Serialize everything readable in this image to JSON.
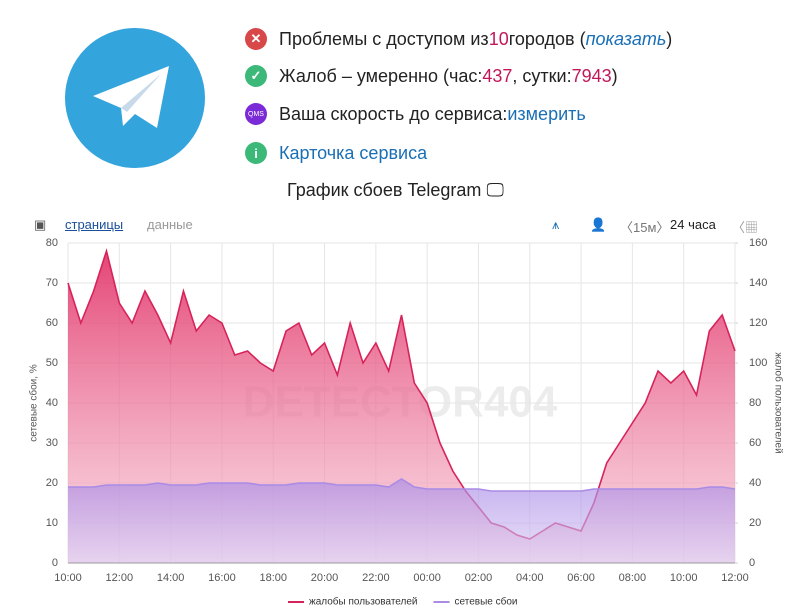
{
  "header": {
    "rows": [
      {
        "parts": [
          "Проблемы с доступом из ",
          "10",
          " городов (",
          "показать",
          ")"
        ]
      },
      {
        "parts": [
          "Жалоб – умеренно (час: ",
          "437",
          ", сутки: ",
          "7943",
          ")"
        ]
      },
      {
        "parts": [
          "Ваша скорость до сервиса: ",
          "измерить"
        ],
        "badge": "QMS"
      },
      {
        "parts": [
          "Карточка сервиса"
        ]
      }
    ],
    "title": "График сбоев Telegram"
  },
  "toolbar": {
    "tabs": [
      "страницы",
      "данные"
    ],
    "interval": "15м",
    "period": "24 часа"
  },
  "watermark": "DETECTOR404",
  "chart_data": {
    "type": "area",
    "categories": [
      "10:00",
      null,
      null,
      null,
      "12:00",
      null,
      null,
      null,
      "14:00",
      null,
      null,
      null,
      "16:00",
      null,
      null,
      null,
      "18:00",
      null,
      null,
      null,
      "20:00",
      null,
      null,
      null,
      "22:00",
      null,
      null,
      null,
      "00:00",
      null,
      null,
      null,
      "02:00",
      null,
      null,
      null,
      "04:00",
      null,
      null,
      null,
      "06:00",
      null,
      null,
      null,
      "08:00",
      null,
      null,
      null,
      "10:00",
      null,
      null,
      null,
      "12:00"
    ],
    "ylabel": "сетевые сбои, %",
    "y2label": "жалоб пользователей",
    "ylim": [
      0,
      80
    ],
    "yticks": [
      0,
      10,
      20,
      30,
      40,
      50,
      60,
      70,
      80
    ],
    "y2lim": [
      0,
      160
    ],
    "y2ticks": [
      0,
      20,
      40,
      60,
      80,
      100,
      120,
      140,
      160
    ],
    "grid": true,
    "series": [
      {
        "name": "жалобы пользователей",
        "color": "#d6245a",
        "axis": "y2",
        "values": [
          140,
          120,
          136,
          156,
          130,
          120,
          136,
          124,
          110,
          136,
          116,
          124,
          120,
          104,
          106,
          100,
          96,
          116,
          120,
          104,
          110,
          94,
          120,
          100,
          110,
          96,
          124,
          90,
          80,
          60,
          46,
          36,
          28,
          20,
          18,
          14,
          12,
          16,
          20,
          18,
          16,
          30,
          50,
          60,
          70,
          80,
          96,
          90,
          96,
          84,
          116,
          124,
          106
        ]
      },
      {
        "name": "сетевые сбои",
        "color": "#a98be6",
        "values": [
          19,
          19,
          19,
          19.5,
          19.5,
          19.5,
          19.5,
          20,
          19.5,
          19.5,
          19.5,
          20,
          20,
          20,
          20,
          19.5,
          19.5,
          19.5,
          20,
          20,
          20,
          19.5,
          19.5,
          19.5,
          19.5,
          19,
          21,
          19,
          18.5,
          18.5,
          18.5,
          18.5,
          18.5,
          18,
          18,
          18,
          18,
          18,
          18,
          18,
          18,
          18.5,
          18.5,
          18.5,
          18.5,
          18.5,
          18.5,
          18.5,
          18.5,
          18.5,
          19,
          19,
          18.5
        ]
      }
    ]
  }
}
